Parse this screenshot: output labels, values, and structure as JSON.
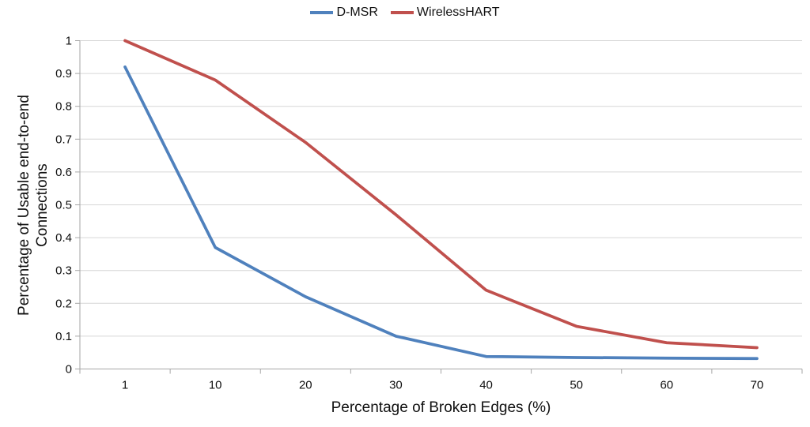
{
  "chart_data": {
    "type": "line",
    "title": "",
    "xlabel": "Percentage of Broken Edges (%)",
    "ylabel": "Percentage of Usable end-to-end Connections",
    "ylabel_lines": [
      "Percentage of Usable end-to-end",
      "Connections"
    ],
    "categories": [
      "1",
      "10",
      "20",
      "30",
      "40",
      "50",
      "60",
      "70"
    ],
    "y_ticks": [
      "0",
      "0.1",
      "0.2",
      "0.3",
      "0.4",
      "0.5",
      "0.6",
      "0.7",
      "0.8",
      "0.9",
      "1"
    ],
    "ylim": [
      0,
      1
    ],
    "grid": "horizontal gridlines on",
    "legend_position": "top-center",
    "series": [
      {
        "name": "D-MSR",
        "color": "#4F81BD",
        "values": [
          0.92,
          0.37,
          0.22,
          0.1,
          0.038,
          0.035,
          0.033,
          0.032
        ]
      },
      {
        "name": "WirelessHART",
        "color": "#C0504D",
        "values": [
          1.0,
          0.88,
          0.69,
          0.47,
          0.24,
          0.13,
          0.08,
          0.065
        ]
      }
    ],
    "colors": {
      "gridline": "#D6D6D6",
      "axis": "#A6A6A6",
      "text": "#111111",
      "background": "#FFFFFF"
    }
  }
}
